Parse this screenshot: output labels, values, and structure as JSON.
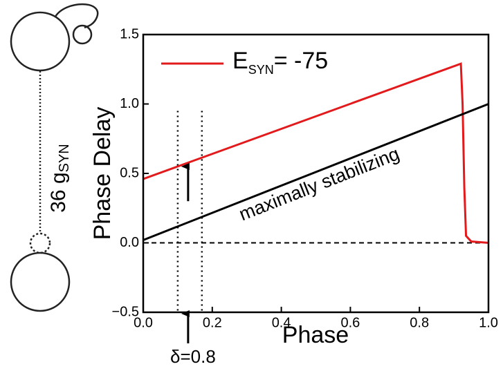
{
  "chart_data": {
    "type": "line",
    "x_label": "Phase",
    "y_label": "Phase Delay",
    "series": [
      {
        "name": "E",
        "name_subscript": "SYN",
        "name_suffix": "= -75",
        "color": "#e31a1c",
        "x": [
          0,
          0.92,
          0.925,
          0.93,
          0.935,
          0.95,
          1.0
        ],
        "values": [
          0.46,
          1.29,
          1.0,
          0.4,
          0.05,
          0.01,
          0.0
        ]
      },
      {
        "color": "#000000",
        "x": [
          0,
          1.0
        ],
        "values": [
          0.02,
          1.0
        ]
      }
    ],
    "xlim": [
      0,
      1.0
    ],
    "ylim": [
      -0.5,
      1.5
    ],
    "xticks": [
      {
        "value": 0,
        "label": "0.0"
      },
      {
        "value": 0.2,
        "label": "0.2"
      },
      {
        "value": 0.4,
        "label": "0.4"
      },
      {
        "value": 0.6,
        "label": "0.6"
      },
      {
        "value": 0.8,
        "label": "0.8"
      },
      {
        "value": 1.0,
        "label": "1.0"
      }
    ],
    "yticks": [
      {
        "value": -0.5,
        "label": "−0.5"
      },
      {
        "value": 0,
        "label": "0.0"
      },
      {
        "value": 0.5,
        "label": "0.5"
      },
      {
        "value": 1.0,
        "label": "1.0"
      },
      {
        "value": 1.5,
        "label": "1.5"
      }
    ],
    "reference_lines": {
      "x": [
        0.1,
        0.17
      ],
      "y": 0
    },
    "arrow": {
      "x": 0.13,
      "y_from": 0.3,
      "y_to": 0.55
    },
    "annotations": {
      "line_label": "maximally stabilizing",
      "delta": "δ=0.8"
    },
    "diagram": {
      "label": "36 g",
      "label_subscript": "SYN"
    }
  }
}
